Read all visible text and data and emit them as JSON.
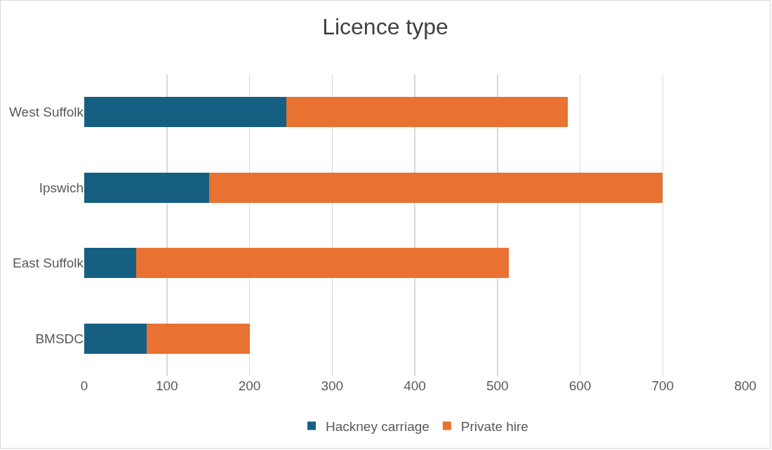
{
  "chart_data": {
    "type": "bar",
    "title": "Licence type",
    "orientation": "horizontal",
    "stacked": true,
    "categories": [
      "West Suffolk",
      "Ipswich",
      "East Suffolk",
      "BMSDC"
    ],
    "series": [
      {
        "name": "Hackney carriage",
        "color": "#156082",
        "values": [
          245,
          151,
          63,
          76
        ]
      },
      {
        "name": "Private hire",
        "color": "#e97132",
        "values": [
          340,
          549,
          451,
          124
        ]
      }
    ],
    "xlim": [
      0,
      800
    ],
    "xticks": [
      0,
      100,
      200,
      300,
      400,
      500,
      600,
      700,
      800
    ],
    "grid": "x",
    "legend": "bottom"
  }
}
